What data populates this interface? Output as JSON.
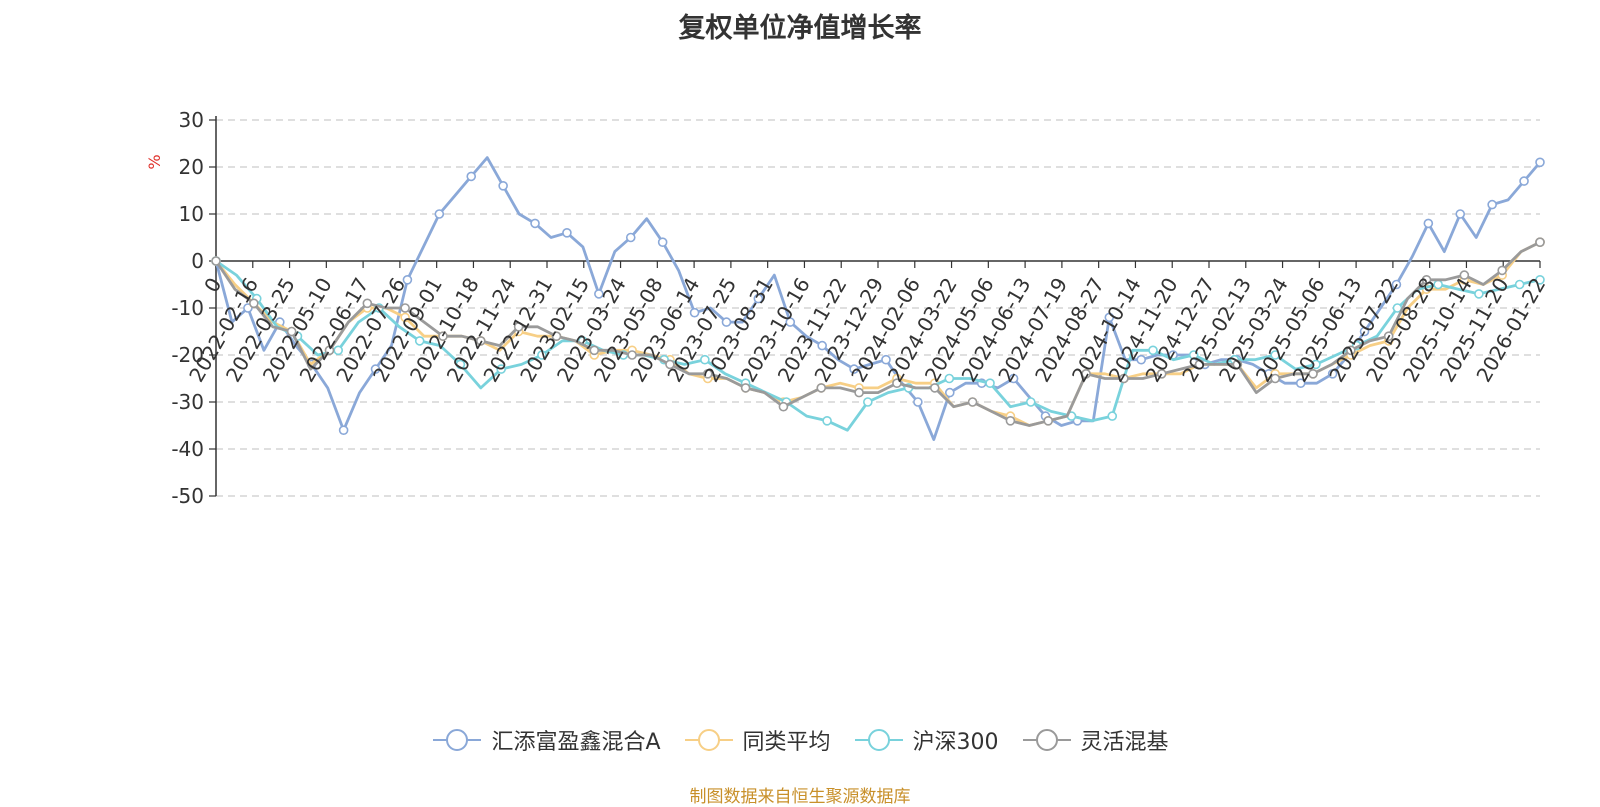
{
  "chart_data": {
    "type": "line",
    "title": "复权单位净值增长率",
    "ylabel": "%",
    "ylim": [
      -50,
      30
    ],
    "yticks": [
      30,
      20,
      10,
      0,
      -10,
      -20,
      -30,
      -40,
      -50
    ],
    "x_tick_labels": [
      "0",
      "2022-02-16",
      "2022-03-25",
      "2022-05-10",
      "2022-06-17",
      "2022-07-26",
      "2022-09-01",
      "2022-10-18",
      "2022-11-24",
      "2022-12-31",
      "2023-02-15",
      "2023-03-24",
      "2023-05-08",
      "2023-06-14",
      "2023-07-25",
      "2023-08-31",
      "2023-10-16",
      "2023-11-22",
      "2023-12-29",
      "2024-02-06",
      "2024-03-22",
      "2024-05-06",
      "2024-06-13",
      "2024-07-19",
      "2024-08-27",
      "2024-10-14",
      "2024-11-20",
      "2024-12-27",
      "2025-02-13",
      "2025-03-24",
      "2025-05-06",
      "2025-06-13",
      "2025-07-22",
      "2025-08-28",
      "2025-10-14",
      "2025-11-20",
      "2026-01-22"
    ],
    "grid": true,
    "legend_position": "bottom",
    "series": [
      {
        "name": "汇添富盈鑫混合A",
        "color": "#8aa8d8",
        "values": [
          0,
          -13,
          -10,
          -19,
          -13,
          -18,
          -22,
          -27,
          -36,
          -28,
          -23,
          -18,
          -4,
          3,
          10,
          14,
          18,
          22,
          16,
          10,
          8,
          5,
          6,
          3,
          -7,
          2,
          5,
          9,
          4,
          -2,
          -11,
          -10,
          -13,
          -13,
          -8,
          -3,
          -13,
          -16,
          -18,
          -21,
          -23,
          -22,
          -21,
          -26,
          -30,
          -38,
          -28,
          -26,
          -26,
          -27,
          -25,
          -29,
          -33,
          -35,
          -34,
          -34,
          -12,
          -21,
          -21,
          -20,
          -20,
          -20,
          -22,
          -21,
          -21,
          -22,
          -24,
          -26,
          -26,
          -26,
          -24,
          -20,
          -15,
          -10,
          -5,
          1,
          8,
          2,
          10,
          5,
          12,
          13,
          17,
          21
        ]
      },
      {
        "name": "同类平均",
        "color": "#f7cf86",
        "values": [
          0,
          -5,
          -9,
          -13,
          -15,
          -22,
          -19,
          -13,
          -10,
          -10,
          -12,
          -16,
          -16,
          -16,
          -17,
          -19,
          -15,
          -16,
          -16,
          -17,
          -20,
          -19,
          -19,
          -20,
          -21,
          -24,
          -25,
          -25,
          -27,
          -28,
          -30,
          -29,
          -27,
          -26,
          -27,
          -27,
          -25,
          -26,
          -26,
          -31,
          -30,
          -32,
          -33,
          -35,
          -34,
          -33,
          -24,
          -24,
          -25,
          -24,
          -24,
          -24,
          -22,
          -22,
          -22,
          -27,
          -24,
          -24,
          -24,
          -22,
          -20,
          -18,
          -17,
          -10,
          -6,
          -6,
          -4,
          -5,
          -3,
          2,
          4
        ]
      },
      {
        "name": "沪深300",
        "color": "#79d2dc",
        "values": [
          0,
          -3,
          -8,
          -14,
          -16,
          -20,
          -19,
          -13,
          -10,
          -14,
          -17,
          -18,
          -22,
          -27,
          -23,
          -22,
          -20,
          -17,
          -17,
          -19,
          -20,
          -20,
          -21,
          -22,
          -21,
          -24,
          -26,
          -28,
          -30,
          -33,
          -34,
          -36,
          -30,
          -28,
          -27,
          -27,
          -25,
          -25,
          -26,
          -31,
          -30,
          -32,
          -33,
          -34,
          -33,
          -19,
          -19,
          -21,
          -20,
          -22,
          -21,
          -21,
          -20,
          -23,
          -22,
          -20,
          -18,
          -16,
          -10,
          -6,
          -5,
          -6,
          -7,
          -6,
          -5,
          -4
        ]
      },
      {
        "name": "灵活混基",
        "color": "#9a9a9a",
        "values": [
          0,
          -6,
          -9,
          -14,
          -15,
          -23,
          -19,
          -13,
          -9,
          -10,
          -10,
          -13,
          -16,
          -16,
          -17,
          -18,
          -14,
          -14,
          -16,
          -17,
          -19,
          -19,
          -20,
          -20,
          -22,
          -24,
          -24,
          -25,
          -27,
          -28,
          -31,
          -29,
          -27,
          -27,
          -28,
          -28,
          -26,
          -27,
          -27,
          -31,
          -30,
          -32,
          -34,
          -35,
          -34,
          -33,
          -24,
          -25,
          -25,
          -25,
          -24,
          -23,
          -22,
          -22,
          -22,
          -28,
          -25,
          -24,
          -24,
          -22,
          -19,
          -17,
          -16,
          -8,
          -4,
          -4,
          -3,
          -5,
          -2,
          2,
          4
        ]
      }
    ]
  },
  "source_note": "制图数据来自恒生聚源数据库"
}
